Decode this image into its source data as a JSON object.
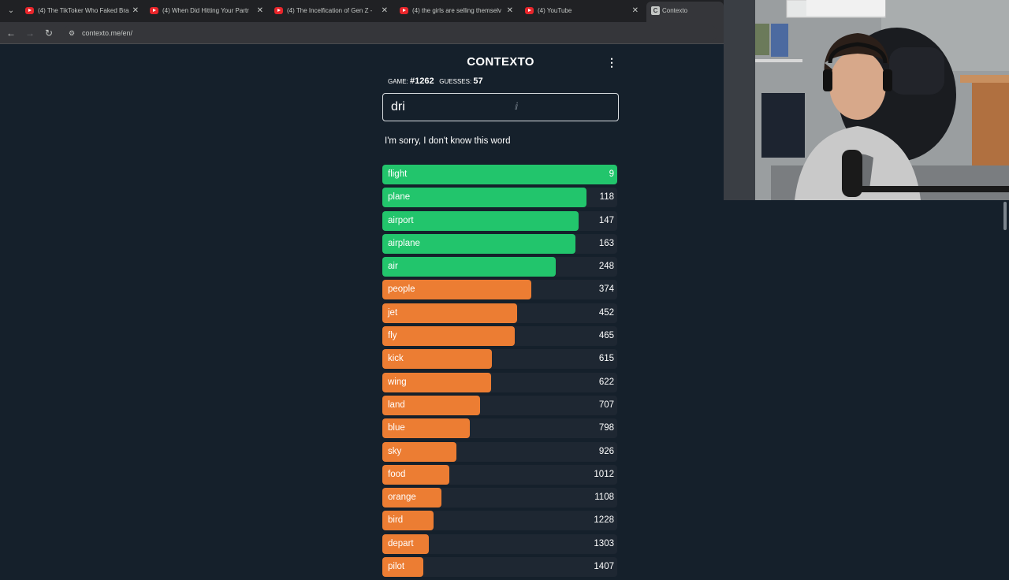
{
  "browser": {
    "tabs": [
      {
        "title": "(4) The TikToker Who Faked Bra",
        "active": false
      },
      {
        "title": "(4) When Did Hitting Your Partr",
        "active": false
      },
      {
        "title": "(4) The Incelfication of Gen Z -",
        "active": false
      },
      {
        "title": "(4) the girls are selling themselv",
        "active": false
      },
      {
        "title": "(4) YouTube",
        "active": false
      },
      {
        "title": "Contexto",
        "active": true
      }
    ],
    "url": "contexto.me/en/",
    "colors": {
      "tab_bar": "#202124",
      "toolbar": "#35363a",
      "youtube_icon": "#e8262b"
    }
  },
  "game": {
    "title": "CONTEXTO",
    "game_label": "GAME:",
    "game_number": "#1262",
    "guesses_label": "GUESSES:",
    "guesses_count": "57",
    "input_value": "dri",
    "message": "I'm sorry, I don't know this word",
    "colors": {
      "background": "#15202b",
      "close": "#22c56c",
      "medium": "#ec7d33",
      "track": "#1e2732"
    },
    "guesses": [
      {
        "word": "flight",
        "rank": "9",
        "color": "#22c56c",
        "fill": 1.0
      },
      {
        "word": "plane",
        "rank": "118",
        "color": "#22c56c",
        "fill": 0.869
      },
      {
        "word": "airport",
        "rank": "147",
        "color": "#22c56c",
        "fill": 0.836
      },
      {
        "word": "airplane",
        "rank": "163",
        "color": "#22c56c",
        "fill": 0.822
      },
      {
        "word": "air",
        "rank": "248",
        "color": "#22c56c",
        "fill": 0.738
      },
      {
        "word": "people",
        "rank": "374",
        "color": "#ec7d33",
        "fill": 0.634
      },
      {
        "word": "jet",
        "rank": "452",
        "color": "#ec7d33",
        "fill": 0.574
      },
      {
        "word": "fly",
        "rank": "465",
        "color": "#ec7d33",
        "fill": 0.564
      },
      {
        "word": "kick",
        "rank": "615",
        "color": "#ec7d33",
        "fill": 0.466
      },
      {
        "word": "wing",
        "rank": "622",
        "color": "#ec7d33",
        "fill": 0.463
      },
      {
        "word": "land",
        "rank": "707",
        "color": "#ec7d33",
        "fill": 0.416
      },
      {
        "word": "blue",
        "rank": "798",
        "color": "#ec7d33",
        "fill": 0.372
      },
      {
        "word": "sky",
        "rank": "926",
        "color": "#ec7d33",
        "fill": 0.315
      },
      {
        "word": "food",
        "rank": "1012",
        "color": "#ec7d33",
        "fill": 0.285
      },
      {
        "word": "orange",
        "rank": "1108",
        "color": "#ec7d33",
        "fill": 0.252
      },
      {
        "word": "bird",
        "rank": "1228",
        "color": "#ec7d33",
        "fill": 0.218
      },
      {
        "word": "depart",
        "rank": "1303",
        "color": "#ec7d33",
        "fill": 0.198
      },
      {
        "word": "pilot",
        "rank": "1407",
        "color": "#ec7d33",
        "fill": 0.175
      }
    ]
  }
}
